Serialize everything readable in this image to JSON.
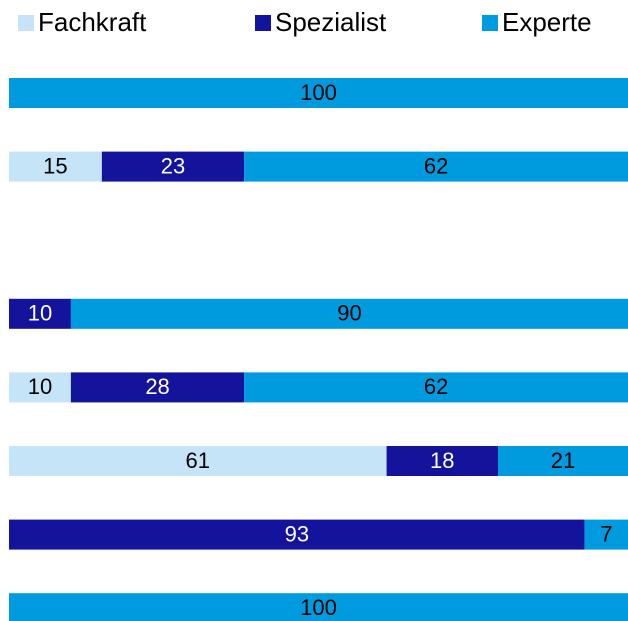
{
  "chart_data": {
    "type": "stacked_barh",
    "categories": [
      null,
      null,
      null,
      null,
      null,
      null,
      null,
      null
    ],
    "series": [
      {
        "name": "Fachkraft",
        "color": "#c5e4f8",
        "values": [
          null,
          15,
          null,
          null,
          10,
          61,
          null,
          null
        ]
      },
      {
        "name": "Spezialist",
        "color": "#13139b",
        "values": [
          null,
          23,
          null,
          10,
          28,
          18,
          93,
          null
        ]
      },
      {
        "name": "Experte",
        "color": "#009ade",
        "values": [
          100,
          62,
          null,
          90,
          62,
          21,
          7,
          100
        ]
      }
    ],
    "xlim": [
      0,
      100
    ],
    "legend": "top"
  }
}
